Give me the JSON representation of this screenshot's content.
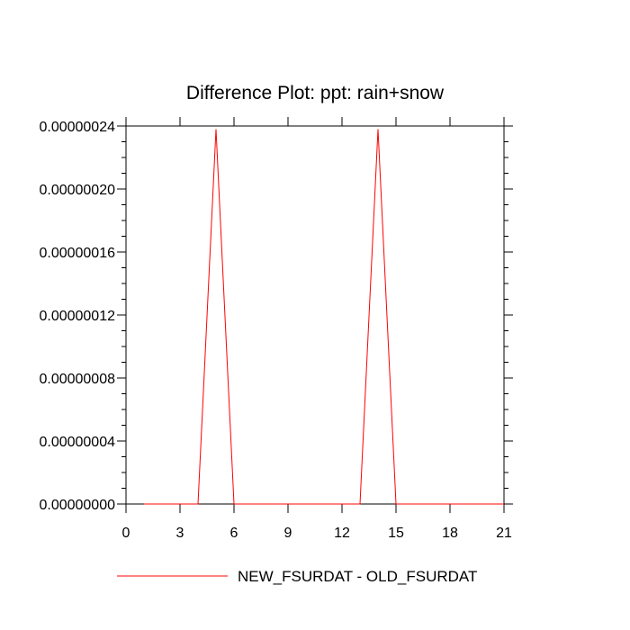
{
  "chart_data": {
    "type": "line",
    "title": "Difference Plot: ppt: rain+snow",
    "xlabel": "",
    "ylabel": "",
    "xlim": [
      0,
      21
    ],
    "ylim": [
      0,
      2.4e-07
    ],
    "xticks": [
      "0",
      "3",
      "6",
      "9",
      "12",
      "15",
      "18",
      "21"
    ],
    "yticks": [
      "0.00000000",
      "0.00000004",
      "0.00000008",
      "0.00000012",
      "0.00000016",
      "0.00000020",
      "0.00000024"
    ],
    "grid": false,
    "legend_position": "bottom",
    "series": [
      {
        "name": "NEW_FSURDAT - OLD_FSURDAT",
        "color": "#ff0000",
        "x": [
          1,
          2,
          3,
          4,
          5,
          6,
          7,
          8,
          9,
          10,
          11,
          12,
          13,
          14,
          15,
          16,
          17,
          18,
          19,
          20,
          21
        ],
        "values": [
          0,
          0,
          0,
          0,
          2.38e-07,
          0,
          0,
          0,
          0,
          0,
          0,
          0,
          0,
          2.38e-07,
          0,
          0,
          0,
          0,
          0,
          0,
          0
        ]
      }
    ]
  }
}
